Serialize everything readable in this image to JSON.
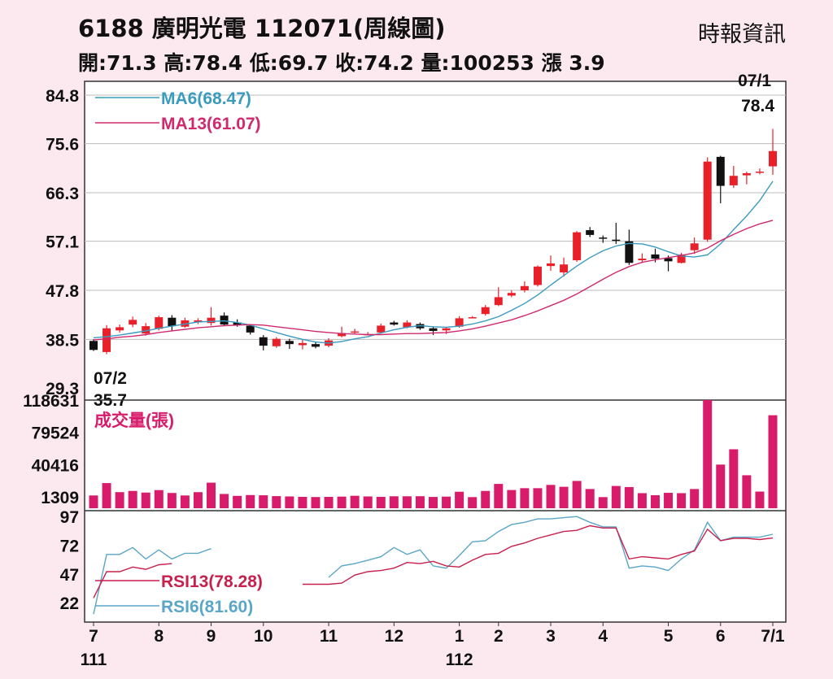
{
  "header": {
    "title": "6188  廣明光電 112071(周線圖)",
    "source": "時報資訊",
    "ohlc_line": "開:71.3 高:78.4 低:69.7 收:74.2 量:100253 漲 3.9"
  },
  "colors": {
    "up": "#e8202a",
    "down": "#111111",
    "ma6": "#3a9bbf",
    "ma13": "#d02a6f",
    "volume": "#d81b6a",
    "rsi6": "#5aa6c8",
    "rsi13": "#c8204d",
    "background": "#fbe9ef"
  },
  "chart_data": [
    {
      "type": "candlestick",
      "yticks": [
        "84.8",
        "75.6",
        "66.3",
        "57.1",
        "47.8",
        "38.5",
        "29.3"
      ],
      "ylim": [
        29.3,
        84.8
      ],
      "grid": true,
      "legend": [
        {
          "label": "MA6(68.47)",
          "series": "ma6"
        },
        {
          "label": "MA13(61.07)",
          "series": "ma13"
        }
      ],
      "annotations": [
        {
          "lines": [
            "07/2",
            "35.7"
          ],
          "at_index": 0
        },
        {
          "lines": [
            "07/1",
            "78.4"
          ],
          "at_index": 52
        }
      ],
      "candles": [
        [
          38.2,
          36.5,
          38.5,
          36.3
        ],
        [
          36.1,
          40.6,
          41.2,
          35.7
        ],
        [
          40.2,
          40.8,
          41.3,
          39.8
        ],
        [
          41.3,
          42.2,
          42.8,
          40.8
        ],
        [
          39.6,
          41.0,
          41.6,
          39.2
        ],
        [
          40.5,
          42.7,
          43.0,
          40.2
        ],
        [
          42.6,
          41.0,
          43.1,
          40.1
        ],
        [
          40.9,
          42.1,
          42.6,
          40.7
        ],
        [
          41.8,
          42.1,
          42.5,
          41.4
        ],
        [
          41.6,
          42.6,
          44.6,
          41.1
        ],
        [
          43.0,
          41.3,
          43.6,
          41.0
        ],
        [
          41.7,
          41.2,
          42.3,
          40.9
        ],
        [
          41.1,
          39.8,
          41.4,
          39.4
        ],
        [
          38.9,
          37.3,
          39.3,
          36.4
        ],
        [
          37.2,
          38.6,
          38.9,
          36.9
        ],
        [
          38.2,
          37.6,
          38.6,
          36.7
        ],
        [
          37.4,
          37.8,
          38.5,
          36.6
        ],
        [
          37.6,
          37.1,
          38.0,
          36.8
        ],
        [
          37.3,
          38.3,
          38.7,
          37.0
        ],
        [
          39.1,
          39.7,
          40.9,
          38.9
        ],
        [
          39.9,
          40.0,
          40.5,
          39.6
        ],
        [
          39.5,
          39.5,
          39.9,
          39.3
        ],
        [
          39.8,
          41.1,
          41.5,
          39.6
        ],
        [
          41.7,
          41.3,
          42.0,
          41.1
        ],
        [
          40.8,
          41.7,
          42.1,
          40.6
        ],
        [
          41.4,
          40.6,
          41.7,
          40.3
        ],
        [
          40.6,
          40.1,
          40.8,
          39.3
        ],
        [
          40.2,
          40.6,
          40.9,
          39.5
        ],
        [
          40.9,
          42.5,
          42.9,
          40.7
        ],
        [
          42.6,
          42.7,
          42.9,
          42.5
        ],
        [
          43.3,
          44.6,
          45.0,
          43.0
        ],
        [
          45.0,
          46.5,
          48.4,
          44.8
        ],
        [
          46.8,
          47.3,
          47.8,
          46.5
        ],
        [
          47.8,
          48.6,
          49.5,
          47.4
        ],
        [
          48.8,
          52.3,
          52.5,
          48.5
        ],
        [
          52.4,
          52.9,
          54.4,
          51.5
        ],
        [
          51.2,
          52.7,
          54.0,
          50.4
        ],
        [
          53.5,
          58.8,
          59.0,
          53.2
        ],
        [
          59.2,
          58.3,
          59.8,
          57.9
        ],
        [
          57.8,
          57.7,
          58.2,
          56.8
        ],
        [
          57.4,
          57.2,
          60.6,
          56.6
        ],
        [
          57.1,
          53.0,
          59.3,
          52.6
        ],
        [
          53.5,
          53.8,
          54.8,
          53.0
        ],
        [
          54.6,
          53.8,
          55.7,
          53.1
        ],
        [
          53.9,
          53.3,
          54.4,
          51.4
        ],
        [
          53.0,
          54.6,
          54.9,
          52.9
        ],
        [
          55.4,
          56.7,
          57.8,
          54.7
        ],
        [
          57.4,
          72.2,
          73.0,
          57.0
        ],
        [
          73.1,
          67.6,
          73.3,
          64.3
        ],
        [
          67.7,
          69.5,
          71.4,
          67.2
        ],
        [
          69.6,
          70.0,
          70.3,
          67.9
        ],
        [
          70.3,
          70.3,
          70.9,
          69.8
        ],
        [
          71.3,
          74.2,
          78.4,
          69.7
        ]
      ],
      "ma6": [
        38.8,
        39.0,
        39.3,
        39.7,
        40.1,
        40.6,
        41.0,
        41.4,
        41.8,
        41.9,
        42.0,
        41.7,
        41.2,
        40.5,
        39.8,
        39.1,
        38.5,
        38.0,
        37.8,
        38.1,
        38.6,
        39.0,
        39.7,
        40.3,
        40.8,
        41.1,
        40.9,
        40.8,
        41.0,
        41.4,
        42.0,
        42.8,
        44.0,
        45.3,
        46.9,
        48.8,
        50.6,
        52.4,
        54.0,
        55.3,
        56.2,
        56.7,
        56.6,
        56.0,
        55.1,
        54.3,
        54.1,
        54.5,
        56.6,
        59.3,
        61.9,
        64.8,
        68.47
      ],
      "ma13": [
        38.4,
        38.6,
        38.9,
        39.1,
        39.4,
        39.8,
        40.1,
        40.4,
        40.7,
        40.9,
        41.1,
        41.2,
        41.3,
        41.2,
        40.9,
        40.6,
        40.3,
        40.0,
        39.8,
        39.6,
        39.5,
        39.4,
        39.4,
        39.5,
        39.6,
        39.6,
        39.7,
        39.8,
        40.1,
        40.5,
        41.0,
        41.6,
        42.2,
        43.0,
        43.9,
        44.9,
        45.9,
        47.1,
        48.5,
        49.9,
        51.2,
        52.3,
        53.1,
        53.6,
        54.0,
        54.4,
        54.9,
        55.8,
        57.2,
        58.4,
        59.5,
        60.4,
        61.07
      ]
    },
    {
      "type": "bar",
      "title": "成交量(張)",
      "yticks": [
        "118631",
        "79524",
        "40416",
        "1309"
      ],
      "ylim": [
        1309,
        118631
      ],
      "values": [
        3000,
        18000,
        7000,
        8500,
        6500,
        9500,
        6000,
        3000,
        7000,
        18500,
        4800,
        2500,
        3500,
        3200,
        2200,
        1800,
        1309,
        1100,
        1300,
        1600,
        2600,
        1800,
        1300,
        2000,
        2000,
        2100,
        1200,
        1600,
        7500,
        1000,
        8500,
        17000,
        9600,
        11800,
        11800,
        15800,
        13500,
        20600,
        10800,
        1000,
        14500,
        13200,
        5800,
        3300,
        6200,
        5800,
        10800,
        118631,
        40416,
        59000,
        27500,
        7700,
        100253
      ]
    },
    {
      "type": "line",
      "yticks": [
        "97",
        "72",
        "47",
        "22"
      ],
      "ylim": [
        10,
        100
      ],
      "legend": [
        {
          "label": "RSI13(78.28)",
          "series": "rsi13"
        },
        {
          "label": "RSI6(81.60)",
          "series": "rsi6"
        }
      ],
      "rsi6": [
        12,
        64,
        64,
        70,
        60,
        68,
        60,
        65,
        65,
        69,
        null,
        null,
        null,
        null,
        null,
        null,
        null,
        null,
        44,
        54,
        56,
        59,
        62,
        70,
        64,
        68,
        54,
        52,
        63,
        75,
        76,
        84,
        90,
        92,
        95,
        95,
        96,
        97,
        92,
        88,
        88,
        52,
        54,
        53,
        50,
        60,
        68,
        92,
        76,
        79,
        79,
        79,
        81.6
      ],
      "rsi13": [
        26,
        49,
        49,
        53,
        51,
        55,
        56,
        null,
        null,
        null,
        null,
        null,
        null,
        null,
        null,
        null,
        38,
        38,
        38,
        39,
        46,
        49,
        50,
        52,
        57,
        56,
        58,
        54,
        53,
        59,
        64,
        65,
        71,
        74,
        78,
        81,
        84,
        85,
        89,
        87,
        87,
        60,
        62,
        61,
        60,
        64,
        67,
        86,
        76,
        78,
        78,
        77,
        78.28
      ]
    },
    {
      "type": "axis",
      "xticks": [
        "7",
        "8",
        "9",
        "10",
        "11",
        "12",
        "1",
        "2",
        "3",
        "4",
        "5",
        "6",
        "7/1"
      ],
      "xtick_index": [
        0,
        5,
        9,
        13,
        18,
        23,
        28,
        31,
        35,
        39,
        44,
        48,
        52
      ],
      "year_labels": [
        {
          "label": "111",
          "at_index": 0
        },
        {
          "label": "112",
          "at_index": 28
        }
      ]
    }
  ]
}
